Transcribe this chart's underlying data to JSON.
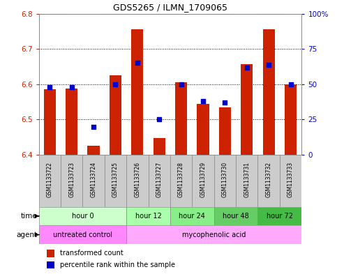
{
  "title": "GDS5265 / ILMN_1709065",
  "samples": [
    "GSM1133722",
    "GSM1133723",
    "GSM1133724",
    "GSM1133725",
    "GSM1133726",
    "GSM1133727",
    "GSM1133728",
    "GSM1133729",
    "GSM1133730",
    "GSM1133731",
    "GSM1133732",
    "GSM1133733"
  ],
  "transformed_count": [
    6.585,
    6.587,
    6.425,
    6.625,
    6.755,
    6.447,
    6.605,
    6.545,
    6.535,
    6.657,
    6.755,
    6.6
  ],
  "percentile_rank": [
    48,
    48,
    20,
    50,
    65,
    25,
    50,
    38,
    37,
    62,
    64,
    50
  ],
  "ylim_left": [
    6.4,
    6.8
  ],
  "ylim_right": [
    0,
    100
  ],
  "yticks_left": [
    6.4,
    6.5,
    6.6,
    6.7,
    6.8
  ],
  "yticks_right": [
    0,
    25,
    50,
    75,
    100
  ],
  "ytick_labels_right": [
    "0",
    "25",
    "50",
    "75",
    "100%"
  ],
  "bar_color": "#cc2200",
  "dot_color": "#0000cc",
  "bar_bottom": 6.4,
  "time_groups": [
    {
      "label": "hour 0",
      "start": 0,
      "end": 3,
      "color": "#ccffcc"
    },
    {
      "label": "hour 12",
      "start": 4,
      "end": 5,
      "color": "#aaffaa"
    },
    {
      "label": "hour 24",
      "start": 6,
      "end": 7,
      "color": "#88ee88"
    },
    {
      "label": "hour 48",
      "start": 8,
      "end": 9,
      "color": "#66cc66"
    },
    {
      "label": "hour 72",
      "start": 10,
      "end": 11,
      "color": "#44bb44"
    }
  ],
  "agent_groups": [
    {
      "label": "untreated control",
      "start": 0,
      "end": 3,
      "color": "#ff88ff"
    },
    {
      "label": "mycophenolic acid",
      "start": 4,
      "end": 11,
      "color": "#ffaaff"
    }
  ],
  "sample_bg_color": "#cccccc",
  "legend_bar_label": "transformed count",
  "legend_dot_label": "percentile rank within the sample",
  "time_label": "time",
  "agent_label": "agent"
}
